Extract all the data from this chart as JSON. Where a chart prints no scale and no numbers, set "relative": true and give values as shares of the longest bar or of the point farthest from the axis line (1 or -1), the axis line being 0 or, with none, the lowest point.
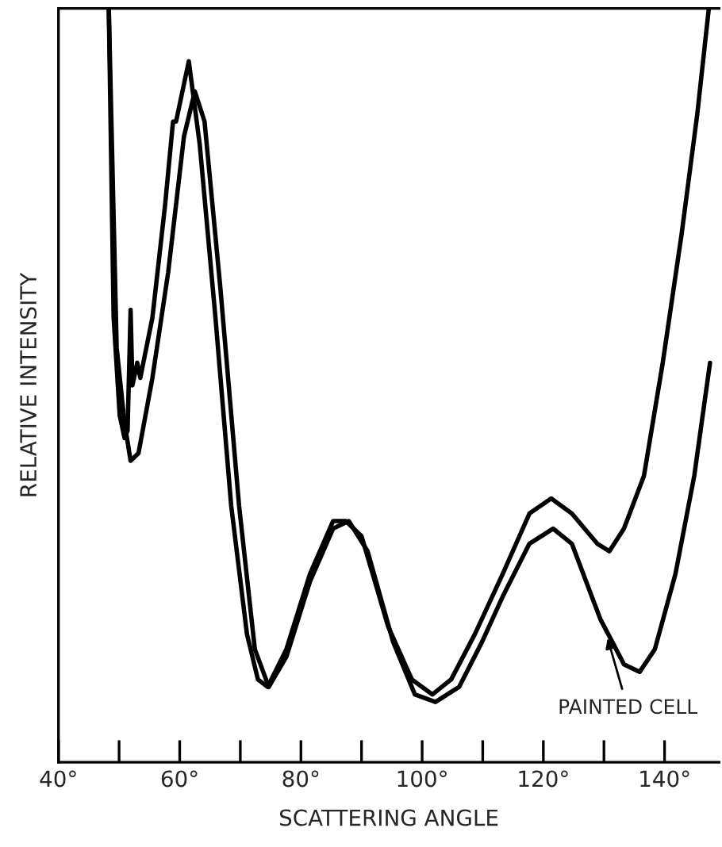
{
  "chart_data": {
    "type": "line",
    "relative": true,
    "xlabel": "SCATTERING ANGLE",
    "ylabel": "RELATIVE INTENSITY",
    "xlim": [
      40,
      149
    ],
    "xticks": [
      {
        "value": 40,
        "label": "40°"
      },
      {
        "value": 50,
        "label": null
      },
      {
        "value": 60,
        "label": "60°"
      },
      {
        "value": 70,
        "label": null
      },
      {
        "value": 80,
        "label": "80°"
      },
      {
        "value": 90,
        "label": null
      },
      {
        "value": 100,
        "label": "100°"
      },
      {
        "value": 110,
        "label": null
      },
      {
        "value": 120,
        "label": "120°"
      },
      {
        "value": 130,
        "label": null
      },
      {
        "value": 140,
        "label": "140°"
      }
    ],
    "tick_labels": "x",
    "grid": false,
    "legend": false,
    "marker": "none",
    "line_style": "solid",
    "series": [
      {
        "color": "#000000",
        "x": [
          48.3,
          49.1,
          50.1,
          50.9,
          51.4,
          51.9,
          52.2,
          53.0,
          53.5,
          55.5,
          57.6,
          58.9,
          59.4,
          61.5,
          63.3,
          65.9,
          68.5,
          71.1,
          72.9,
          74.5,
          77.6,
          81.5,
          85.3,
          87.4,
          90.0,
          94.4,
          98.3,
          101.7,
          104.8,
          108.7,
          113.3,
          117.7,
          121.3,
          124.7,
          128.9,
          130.9,
          133.3,
          136.6,
          139.7,
          142.8,
          145.4,
          147.3
        ],
        "values": [
          1.0,
          0.59,
          0.46,
          0.43,
          0.44,
          0.6,
          0.5,
          0.53,
          0.51,
          0.59,
          0.74,
          0.85,
          0.85,
          0.93,
          0.82,
          0.59,
          0.34,
          0.17,
          0.11,
          0.1,
          0.15,
          0.25,
          0.32,
          0.32,
          0.3,
          0.18,
          0.11,
          0.09,
          0.11,
          0.17,
          0.25,
          0.33,
          0.35,
          0.33,
          0.29,
          0.28,
          0.31,
          0.38,
          0.53,
          0.7,
          0.86,
          1.0
        ]
      },
      {
        "color": "#000000",
        "x": [
          48.3,
          49.6,
          50.9,
          51.9,
          53.2,
          55.5,
          58.1,
          60.7,
          62.5,
          64.1,
          66.7,
          69.8,
          72.4,
          74.7,
          77.6,
          81.5,
          85.3,
          87.9,
          91.0,
          95.2,
          98.8,
          102.2,
          106.1,
          109.9,
          113.3,
          117.7,
          121.6,
          124.7,
          129.4,
          133.3,
          135.9,
          138.4,
          141.8,
          144.9,
          147.5
        ],
        "values": [
          1.0,
          0.55,
          0.45,
          0.4,
          0.41,
          0.51,
          0.65,
          0.83,
          0.89,
          0.85,
          0.63,
          0.34,
          0.15,
          0.1,
          0.14,
          0.24,
          0.31,
          0.32,
          0.28,
          0.16,
          0.09,
          0.08,
          0.1,
          0.16,
          0.22,
          0.29,
          0.31,
          0.29,
          0.19,
          0.13,
          0.12,
          0.15,
          0.25,
          0.38,
          0.53
        ]
      }
    ],
    "annotations": [
      {
        "text": "PAINTED CELL",
        "x": 130.4,
        "y": 0.17
      }
    ]
  }
}
